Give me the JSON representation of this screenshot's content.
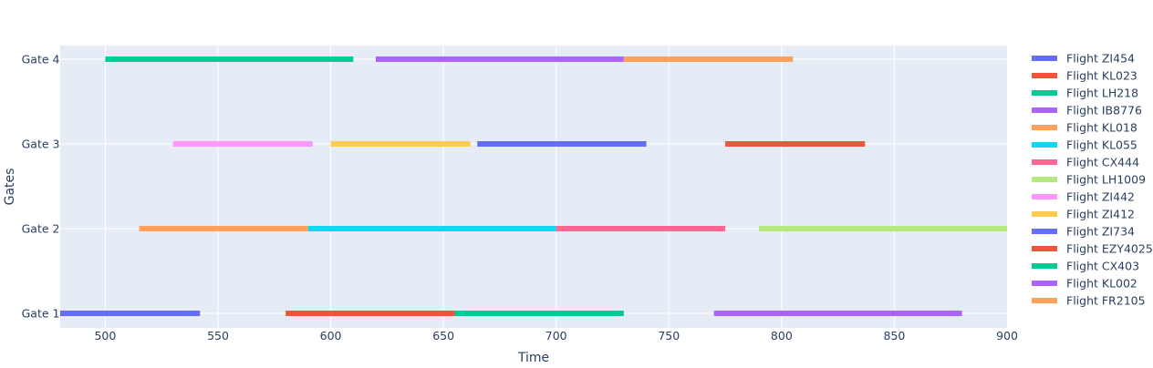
{
  "chart_data": {
    "type": "gantt",
    "title": "",
    "xlabel": "Time",
    "ylabel": "Gates",
    "xlim": [
      480,
      900
    ],
    "x_ticks": [
      500,
      550,
      600,
      650,
      700,
      750,
      800,
      850,
      900
    ],
    "categories": [
      "Gate 1",
      "Gate 2",
      "Gate 3",
      "Gate 4"
    ],
    "grid": true,
    "legend_position": "right",
    "background": "#e5ecf6",
    "series": [
      {
        "name": "Flight ZI454",
        "color": "#636efa",
        "gate": "Gate 1",
        "start": 480,
        "end": 542
      },
      {
        "name": "Flight KL023",
        "color": "#ef553b",
        "gate": "Gate 1",
        "start": 580,
        "end": 655
      },
      {
        "name": "Flight LH218",
        "color": "#00cc96",
        "gate": "Gate 1",
        "start": 655,
        "end": 730
      },
      {
        "name": "Flight IB8776",
        "color": "#ab63fa",
        "gate": "Gate 1",
        "start": 770,
        "end": 880
      },
      {
        "name": "Flight KL018",
        "color": "#ffa15a",
        "gate": "Gate 2",
        "start": 515,
        "end": 590
      },
      {
        "name": "Flight KL055",
        "color": "#19d3f3",
        "gate": "Gate 2",
        "start": 590,
        "end": 700
      },
      {
        "name": "Flight CX444",
        "color": "#ff6692",
        "gate": "Gate 2",
        "start": 700,
        "end": 775
      },
      {
        "name": "Flight LH1009",
        "color": "#b6e880",
        "gate": "Gate 2",
        "start": 790,
        "end": 900
      },
      {
        "name": "Flight ZI442",
        "color": "#ff97ff",
        "gate": "Gate 3",
        "start": 530,
        "end": 592
      },
      {
        "name": "Flight ZI412",
        "color": "#fecb52",
        "gate": "Gate 3",
        "start": 600,
        "end": 662
      },
      {
        "name": "Flight ZI734",
        "color": "#636efa",
        "gate": "Gate 3",
        "start": 665,
        "end": 740
      },
      {
        "name": "Flight EZY4025",
        "color": "#ef553b",
        "gate": "Gate 3",
        "start": 775,
        "end": 837
      },
      {
        "name": "Flight CX403",
        "color": "#00cc96",
        "gate": "Gate 4",
        "start": 500,
        "end": 610
      },
      {
        "name": "Flight KL002",
        "color": "#ab63fa",
        "gate": "Gate 4",
        "start": 620,
        "end": 730
      },
      {
        "name": "Flight FR2105",
        "color": "#ffa15a",
        "gate": "Gate 4",
        "start": 730,
        "end": 805
      }
    ]
  }
}
